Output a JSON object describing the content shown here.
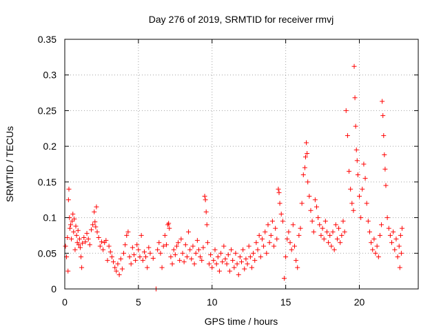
{
  "chart_data": {
    "type": "scatter",
    "title": "Day 276 of 2019, SRMTID for receiver rmvj",
    "xlabel": "GPS time / hours",
    "ylabel": "SRMTID / TECUs",
    "xlim": [
      0,
      24
    ],
    "ylim": [
      0,
      0.35
    ],
    "xticks": [
      0,
      5,
      10,
      15,
      20
    ],
    "xtick_labels": [
      "0",
      "5",
      "10",
      "15",
      "20"
    ],
    "yticks": [
      0,
      0.05,
      0.1,
      0.15,
      0.2,
      0.25,
      0.3,
      0.35
    ],
    "ytick_labels": [
      "0",
      "0.05",
      "0.1",
      "0.15",
      "0.2",
      "0.25",
      "0.3",
      "0.35"
    ],
    "grid": true,
    "marker": "plus",
    "color": "#ff0000",
    "series": [
      {
        "name": "SRMTID",
        "points": [
          [
            0.05,
            0.06
          ],
          [
            0.12,
            0.045
          ],
          [
            0.18,
            0.072
          ],
          [
            0.22,
            0.025
          ],
          [
            0.25,
            0.125
          ],
          [
            0.28,
            0.14
          ],
          [
            0.32,
            0.1
          ],
          [
            0.35,
            0.085
          ],
          [
            0.4,
            0.09
          ],
          [
            0.45,
            0.07
          ],
          [
            0.5,
            0.095
          ],
          [
            0.55,
            0.105
          ],
          [
            0.6,
            0.08
          ],
          [
            0.65,
            0.098
          ],
          [
            0.7,
            0.055
          ],
          [
            0.75,
            0.088
          ],
          [
            0.8,
            0.075
          ],
          [
            0.85,
            0.065
          ],
          [
            0.9,
            0.082
          ],
          [
            0.95,
            0.062
          ],
          [
            1.0,
            0.07
          ],
          [
            1.05,
            0.058
          ],
          [
            1.1,
            0.045
          ],
          [
            1.15,
            0.03
          ],
          [
            1.2,
            0.064
          ],
          [
            1.3,
            0.072
          ],
          [
            1.4,
            0.066
          ],
          [
            1.5,
            0.078
          ],
          [
            1.6,
            0.07
          ],
          [
            1.7,
            0.062
          ],
          [
            1.8,
            0.083
          ],
          [
            1.9,
            0.09
          ],
          [
            2.0,
            0.108
          ],
          [
            2.05,
            0.094
          ],
          [
            2.1,
            0.087
          ],
          [
            2.15,
            0.115
          ],
          [
            2.2,
            0.08
          ],
          [
            2.3,
            0.072
          ],
          [
            2.4,
            0.06
          ],
          [
            2.5,
            0.066
          ],
          [
            2.6,
            0.055
          ],
          [
            2.7,
            0.065
          ],
          [
            2.8,
            0.068
          ],
          [
            2.9,
            0.04
          ],
          [
            3.0,
            0.06
          ],
          [
            3.1,
            0.052
          ],
          [
            3.2,
            0.045
          ],
          [
            3.3,
            0.038
          ],
          [
            3.4,
            0.03
          ],
          [
            3.5,
            0.025
          ],
          [
            3.6,
            0.035
          ],
          [
            3.7,
            0.02
          ],
          [
            3.8,
            0.042
          ],
          [
            3.9,
            0.028
          ],
          [
            4.0,
            0.05
          ],
          [
            4.1,
            0.062
          ],
          [
            4.2,
            0.075
          ],
          [
            4.3,
            0.08
          ],
          [
            4.4,
            0.045
          ],
          [
            4.5,
            0.035
          ],
          [
            4.6,
            0.058
          ],
          [
            4.7,
            0.048
          ],
          [
            4.8,
            0.04
          ],
          [
            4.9,
            0.062
          ],
          [
            5.0,
            0.055
          ],
          [
            5.1,
            0.045
          ],
          [
            5.2,
            0.075
          ],
          [
            5.3,
            0.04
          ],
          [
            5.4,
            0.052
          ],
          [
            5.5,
            0.045
          ],
          [
            5.6,
            0.03
          ],
          [
            5.7,
            0.058
          ],
          [
            5.8,
            0.05
          ],
          [
            6.0,
            0.043
          ],
          [
            6.2,
            0.0
          ],
          [
            6.3,
            0.055
          ],
          [
            6.4,
            0.065
          ],
          [
            6.5,
            0.05
          ],
          [
            6.6,
            0.03
          ],
          [
            6.7,
            0.06
          ],
          [
            6.8,
            0.075
          ],
          [
            6.9,
            0.062
          ],
          [
            7.0,
            0.09
          ],
          [
            7.05,
            0.092
          ],
          [
            7.1,
            0.085
          ],
          [
            7.2,
            0.045
          ],
          [
            7.3,
            0.035
          ],
          [
            7.4,
            0.055
          ],
          [
            7.5,
            0.048
          ],
          [
            7.6,
            0.06
          ],
          [
            7.7,
            0.065
          ],
          [
            7.8,
            0.04
          ],
          [
            7.9,
            0.07
          ],
          [
            8.0,
            0.05
          ],
          [
            8.1,
            0.038
          ],
          [
            8.2,
            0.062
          ],
          [
            8.3,
            0.045
          ],
          [
            8.4,
            0.08
          ],
          [
            8.5,
            0.055
          ],
          [
            8.6,
            0.042
          ],
          [
            8.7,
            0.06
          ],
          [
            8.8,
            0.035
          ],
          [
            8.9,
            0.05
          ],
          [
            9.0,
            0.068
          ],
          [
            9.1,
            0.055
          ],
          [
            9.2,
            0.045
          ],
          [
            9.3,
            0.04
          ],
          [
            9.4,
            0.058
          ],
          [
            9.5,
            0.13
          ],
          [
            9.55,
            0.125
          ],
          [
            9.6,
            0.108
          ],
          [
            9.65,
            0.09
          ],
          [
            9.7,
            0.065
          ],
          [
            9.8,
            0.035
          ],
          [
            9.9,
            0.048
          ],
          [
            10.0,
            0.03
          ],
          [
            10.1,
            0.04
          ],
          [
            10.2,
            0.055
          ],
          [
            10.3,
            0.035
          ],
          [
            10.4,
            0.045
          ],
          [
            10.5,
            0.025
          ],
          [
            10.6,
            0.05
          ],
          [
            10.7,
            0.038
          ],
          [
            10.8,
            0.06
          ],
          [
            10.9,
            0.042
          ],
          [
            11.0,
            0.035
          ],
          [
            11.1,
            0.048
          ],
          [
            11.2,
            0.025
          ],
          [
            11.3,
            0.055
          ],
          [
            11.4,
            0.04
          ],
          [
            11.5,
            0.03
          ],
          [
            11.6,
            0.05
          ],
          [
            11.7,
            0.035
          ],
          [
            11.8,
            0.02
          ],
          [
            11.9,
            0.045
          ],
          [
            12.0,
            0.038
          ],
          [
            12.1,
            0.055
          ],
          [
            12.2,
            0.028
          ],
          [
            12.3,
            0.042
          ],
          [
            12.4,
            0.035
          ],
          [
            12.5,
            0.06
          ],
          [
            12.6,
            0.045
          ],
          [
            12.7,
            0.03
          ],
          [
            12.8,
            0.05
          ],
          [
            12.9,
            0.04
          ],
          [
            13.0,
            0.065
          ],
          [
            13.1,
            0.055
          ],
          [
            13.2,
            0.075
          ],
          [
            13.3,
            0.045
          ],
          [
            13.4,
            0.07
          ],
          [
            13.5,
            0.06
          ],
          [
            13.6,
            0.08
          ],
          [
            13.7,
            0.05
          ],
          [
            13.8,
            0.09
          ],
          [
            13.9,
            0.065
          ],
          [
            14.0,
            0.075
          ],
          [
            14.1,
            0.095
          ],
          [
            14.2,
            0.06
          ],
          [
            14.3,
            0.085
          ],
          [
            14.4,
            0.07
          ],
          [
            14.5,
            0.14
          ],
          [
            14.55,
            0.135
          ],
          [
            14.6,
            0.12
          ],
          [
            14.7,
            0.105
          ],
          [
            14.8,
            0.095
          ],
          [
            14.9,
            0.015
          ],
          [
            15.0,
            0.045
          ],
          [
            15.1,
            0.07
          ],
          [
            15.2,
            0.08
          ],
          [
            15.3,
            0.065
          ],
          [
            15.4,
            0.055
          ],
          [
            15.5,
            0.09
          ],
          [
            15.6,
            0.06
          ],
          [
            15.7,
            0.04
          ],
          [
            15.8,
            0.03
          ],
          [
            15.9,
            0.075
          ],
          [
            16.0,
            0.085
          ],
          [
            16.1,
            0.12
          ],
          [
            16.2,
            0.16
          ],
          [
            16.3,
            0.17
          ],
          [
            16.35,
            0.185
          ],
          [
            16.4,
            0.205
          ],
          [
            16.45,
            0.19
          ],
          [
            16.5,
            0.15
          ],
          [
            16.6,
            0.13
          ],
          [
            16.7,
            0.11
          ],
          [
            16.8,
            0.095
          ],
          [
            16.9,
            0.08
          ],
          [
            17.0,
            0.125
          ],
          [
            17.1,
            0.115
          ],
          [
            17.2,
            0.1
          ],
          [
            17.3,
            0.09
          ],
          [
            17.4,
            0.075
          ],
          [
            17.5,
            0.085
          ],
          [
            17.6,
            0.07
          ],
          [
            17.7,
            0.095
          ],
          [
            17.8,
            0.08
          ],
          [
            17.9,
            0.065
          ],
          [
            18.0,
            0.075
          ],
          [
            18.1,
            0.06
          ],
          [
            18.2,
            0.08
          ],
          [
            18.3,
            0.055
          ],
          [
            18.4,
            0.09
          ],
          [
            18.5,
            0.07
          ],
          [
            18.6,
            0.085
          ],
          [
            18.7,
            0.065
          ],
          [
            18.8,
            0.075
          ],
          [
            18.9,
            0.095
          ],
          [
            19.0,
            0.08
          ],
          [
            19.1,
            0.25
          ],
          [
            19.2,
            0.215
          ],
          [
            19.3,
            0.165
          ],
          [
            19.4,
            0.14
          ],
          [
            19.5,
            0.12
          ],
          [
            19.6,
            0.11
          ],
          [
            19.65,
            0.312
          ],
          [
            19.7,
            0.268
          ],
          [
            19.75,
            0.228
          ],
          [
            19.8,
            0.195
          ],
          [
            19.85,
            0.18
          ],
          [
            19.9,
            0.16
          ],
          [
            20.0,
            0.13
          ],
          [
            20.1,
            0.1
          ],
          [
            20.2,
            0.14
          ],
          [
            20.3,
            0.175
          ],
          [
            20.4,
            0.155
          ],
          [
            20.5,
            0.12
          ],
          [
            20.6,
            0.095
          ],
          [
            20.7,
            0.08
          ],
          [
            20.8,
            0.065
          ],
          [
            20.9,
            0.055
          ],
          [
            21.0,
            0.07
          ],
          [
            21.1,
            0.05
          ],
          [
            21.2,
            0.06
          ],
          [
            21.3,
            0.045
          ],
          [
            21.4,
            0.075
          ],
          [
            21.5,
            0.09
          ],
          [
            21.55,
            0.263
          ],
          [
            21.6,
            0.243
          ],
          [
            21.65,
            0.215
          ],
          [
            21.7,
            0.188
          ],
          [
            21.75,
            0.168
          ],
          [
            21.8,
            0.145
          ],
          [
            21.9,
            0.1
          ],
          [
            22.0,
            0.085
          ],
          [
            22.1,
            0.075
          ],
          [
            22.2,
            0.065
          ],
          [
            22.3,
            0.08
          ],
          [
            22.4,
            0.055
          ],
          [
            22.5,
            0.07
          ],
          [
            22.6,
            0.045
          ],
          [
            22.7,
            0.06
          ],
          [
            22.75,
            0.03
          ],
          [
            22.8,
            0.075
          ],
          [
            22.85,
            0.05
          ],
          [
            22.9,
            0.085
          ]
        ]
      }
    ]
  }
}
